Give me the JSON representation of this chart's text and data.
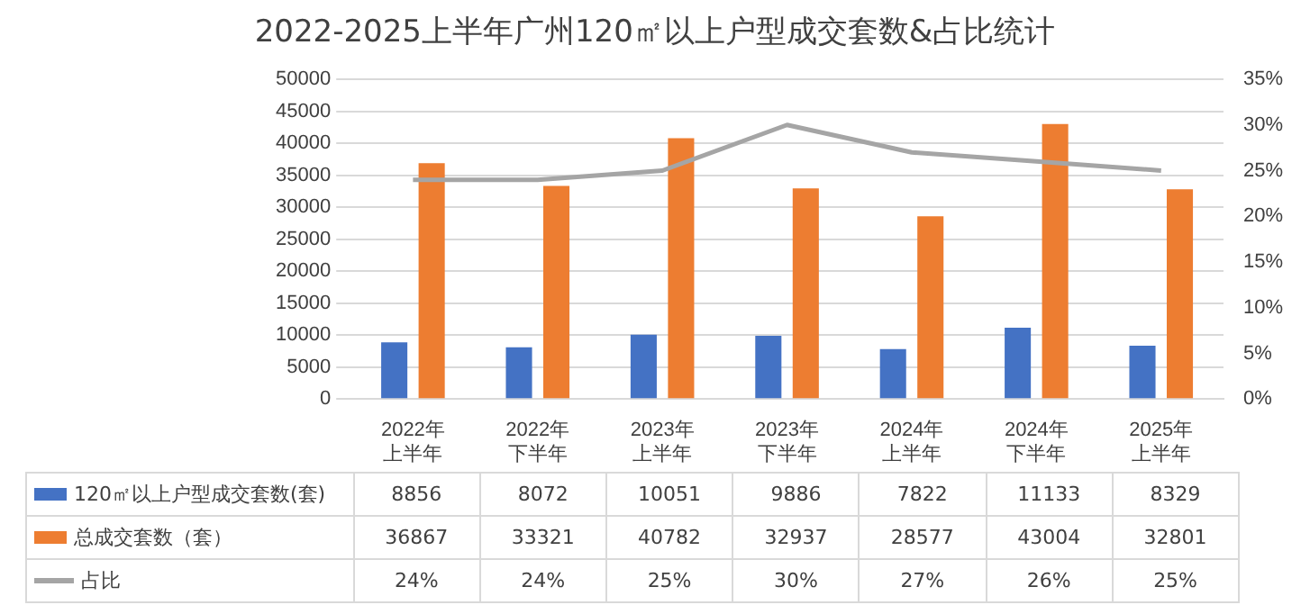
{
  "chart_data": {
    "type": "bar",
    "title": "2022-2025上半年广州120㎡以上户型成交套数&占比统计",
    "categories": [
      "2022年上半年",
      "2022年下半年",
      "2023年上半年",
      "2023年下半年",
      "2024年上半年",
      "2024年下半年",
      "2025年上半年"
    ],
    "series": [
      {
        "name": "120㎡以上户型成交套数(套)",
        "color": "#4472c4",
        "values": [
          8856,
          8072,
          10051,
          9886,
          7822,
          11133,
          8329
        ]
      },
      {
        "name": "总成交套数（套）",
        "color": "#ed7d31",
        "values": [
          36867,
          33321,
          40782,
          32937,
          28577,
          43004,
          32801
        ]
      },
      {
        "name": "占比",
        "type": "line",
        "axis": "y2",
        "color": "#a5a5a5",
        "values": [
          24,
          24,
          25,
          30,
          27,
          26,
          25
        ],
        "value_labels": [
          "24%",
          "24%",
          "25%",
          "30%",
          "27%",
          "26%",
          "25%"
        ]
      }
    ],
    "ylim": [
      0,
      50000
    ],
    "yticks": [
      0,
      5000,
      10000,
      15000,
      20000,
      25000,
      30000,
      35000,
      40000,
      45000,
      50000
    ],
    "y2lim": [
      0,
      35
    ],
    "y2ticks": [
      {
        "value": 0,
        "label": "0%"
      },
      {
        "value": 5,
        "label": "5%"
      },
      {
        "value": 10,
        "label": "10%"
      },
      {
        "value": 15,
        "label": "15%"
      },
      {
        "value": 20,
        "label": "20%"
      },
      {
        "value": 25,
        "label": "25%"
      },
      {
        "value": 30,
        "label": "30%"
      },
      {
        "value": 35,
        "label": "35%"
      }
    ],
    "grid": "y",
    "legend": "bottom",
    "marker": "none",
    "line_style": "solid",
    "data_labels": true
  }
}
